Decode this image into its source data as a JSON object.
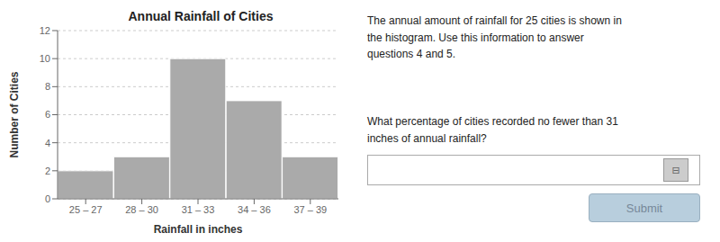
{
  "chart_data": {
    "type": "bar",
    "title": "Annual Rainfall of Cities",
    "x_label": "Rainfall in inches",
    "y_label": "Number of Cities",
    "categories": [
      "25 – 27",
      "28 – 30",
      "31 – 33",
      "34 – 36",
      "37 – 39"
    ],
    "values": [
      2,
      3,
      10,
      7,
      3
    ],
    "color": "#aaaaaa",
    "ylim": [
      0,
      12
    ],
    "yticks": [
      0,
      2,
      4,
      6,
      8,
      10,
      12
    ],
    "grid": true,
    "annotations": [
      "The annual amount of rainfall for 25 cities is shown in\nthe histogram.  Use this information to answer\nquestions 4 and 5.",
      "What percentage of cities recorded no fewer than 31\ninches of annual rainfall?",
      "⊟",
      "Submit"
    ]
  }
}
